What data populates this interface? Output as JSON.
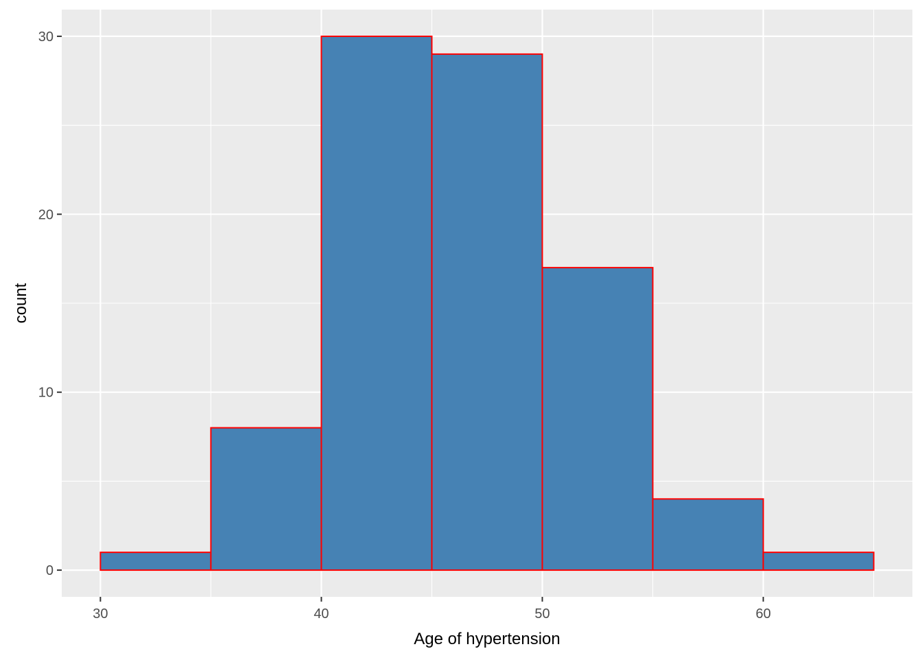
{
  "chart_data": {
    "type": "bar",
    "subtype": "histogram",
    "xlabel": "Age of hypertension",
    "ylabel": "count",
    "bins": [
      {
        "start": 30,
        "end": 35,
        "count": 1
      },
      {
        "start": 35,
        "end": 40,
        "count": 8
      },
      {
        "start": 40,
        "end": 45,
        "count": 30
      },
      {
        "start": 45,
        "end": 50,
        "count": 29
      },
      {
        "start": 50,
        "end": 55,
        "count": 17
      },
      {
        "start": 55,
        "end": 60,
        "count": 4
      },
      {
        "start": 60,
        "end": 65,
        "count": 1
      }
    ],
    "xlim": [
      28.25,
      66.75
    ],
    "ylim": [
      -1.5,
      31.5
    ],
    "x_ticks": [
      30,
      40,
      50,
      60
    ],
    "y_ticks": [
      0,
      10,
      20,
      30
    ],
    "x_minor_ticks": [
      35,
      45,
      55,
      65
    ],
    "y_minor_ticks": [
      5,
      15,
      25
    ],
    "grid": true,
    "colors": {
      "bar_fill": "#4682b4",
      "bar_outline": "#ff0000",
      "panel_background": "#ebebeb",
      "grid": "#ffffff"
    }
  }
}
